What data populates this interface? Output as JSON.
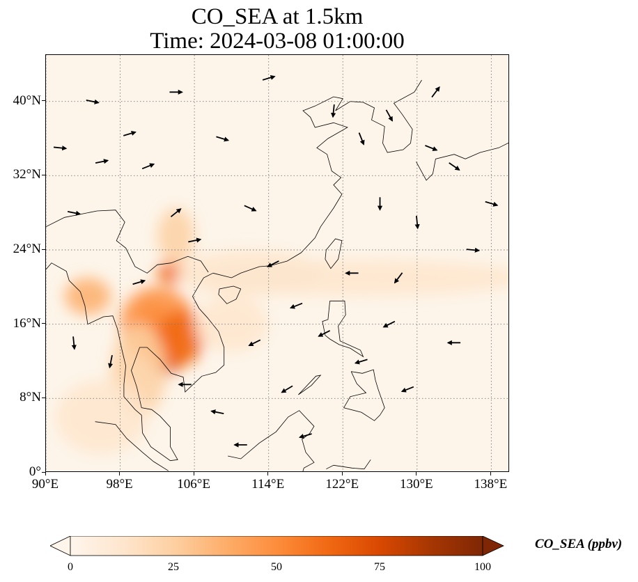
{
  "title": {
    "line1": "CO_SEA at 1.5km",
    "line2": "Time: 2024-03-08 01:00:00"
  },
  "map": {
    "projection": "PlateCarree",
    "lon_range": [
      90,
      140
    ],
    "lat_range": [
      0,
      45
    ],
    "x_ticks": [
      {
        "lon": 90,
        "label": "90°E"
      },
      {
        "lon": 98,
        "label": "98°E"
      },
      {
        "lon": 106,
        "label": "106°E"
      },
      {
        "lon": 114,
        "label": "114°E"
      },
      {
        "lon": 122,
        "label": "122°E"
      },
      {
        "lon": 130,
        "label": "130°E"
      },
      {
        "lon": 138,
        "label": "138°E"
      }
    ],
    "y_ticks": [
      {
        "lat": 0,
        "label": "0°"
      },
      {
        "lat": 8,
        "label": "8°N"
      },
      {
        "lat": 16,
        "label": "16°N"
      },
      {
        "lat": 24,
        "label": "24°N"
      },
      {
        "lat": 32,
        "label": "32°N"
      },
      {
        "lat": 40,
        "label": "40°N"
      }
    ],
    "gridlines": "dotted",
    "background_color": "#fdf5ea",
    "coastline_color": "#000000"
  },
  "concentration_field": {
    "variable": "CO_SEA",
    "units": "ppbv",
    "hotspots": [
      {
        "lon": 103.0,
        "lat": 13.5,
        "value": 75,
        "rlon": 2.0,
        "rlat": 3.0
      },
      {
        "lon": 102.0,
        "lat": 16.0,
        "value": 55,
        "rlon": 4.0,
        "rlat": 4.0
      },
      {
        "lon": 103.5,
        "lat": 21.5,
        "value": 60,
        "rlon": 1.5,
        "rlat": 1.2
      },
      {
        "lon": 101.5,
        "lat": 17.0,
        "value": 50,
        "rlon": 1.5,
        "rlat": 1.2
      },
      {
        "lon": 104.5,
        "lat": 14.5,
        "value": 58,
        "rlon": 2.5,
        "rlat": 3.0
      },
      {
        "lon": 94.5,
        "lat": 19.0,
        "value": 35,
        "rlon": 2.5,
        "rlat": 2.0
      },
      {
        "lon": 100.0,
        "lat": 11.0,
        "value": 30,
        "rlon": 3.0,
        "rlat": 5.0
      },
      {
        "lon": 96.0,
        "lat": 6.0,
        "value": 18,
        "rlon": 5.0,
        "rlat": 4.0
      },
      {
        "lon": 112.0,
        "lat": 21.5,
        "value": 14,
        "rlon": 8.0,
        "rlat": 2.5
      },
      {
        "lon": 124.0,
        "lat": 21.0,
        "value": 10,
        "rlon": 18.0,
        "rlat": 2.0
      },
      {
        "lon": 104.0,
        "lat": 25.5,
        "value": 20,
        "rlon": 2.0,
        "rlat": 3.0
      },
      {
        "lon": 110.0,
        "lat": 16.0,
        "value": 12,
        "rlon": 4.0,
        "rlat": 3.0
      }
    ]
  },
  "wind_vectors": [
    {
      "lon": 91.5,
      "lat": 35.0,
      "u": 1.0,
      "v": -0.1
    },
    {
      "lon": 93.0,
      "lat": 28.0,
      "u": 1.0,
      "v": -0.2
    },
    {
      "lon": 96.0,
      "lat": 33.5,
      "u": 1.0,
      "v": 0.2
    },
    {
      "lon": 99.0,
      "lat": 36.5,
      "u": 1.0,
      "v": 0.3
    },
    {
      "lon": 101.0,
      "lat": 33.0,
      "u": 1.0,
      "v": 0.4
    },
    {
      "lon": 104.0,
      "lat": 28.0,
      "u": 1.0,
      "v": 0.8
    },
    {
      "lon": 106.0,
      "lat": 25.0,
      "u": 1.0,
      "v": 0.2
    },
    {
      "lon": 100.0,
      "lat": 20.5,
      "u": 1.0,
      "v": 0.3
    },
    {
      "lon": 109.0,
      "lat": 36.0,
      "u": 1.0,
      "v": -0.3
    },
    {
      "lon": 112.0,
      "lat": 28.5,
      "u": 0.9,
      "v": -0.4
    },
    {
      "lon": 114.5,
      "lat": 22.5,
      "u": -1.0,
      "v": -0.5
    },
    {
      "lon": 117.0,
      "lat": 18.0,
      "u": -1.0,
      "v": -0.4
    },
    {
      "lon": 112.5,
      "lat": 14.0,
      "u": -1.0,
      "v": -0.5
    },
    {
      "lon": 116.0,
      "lat": 9.0,
      "u": -1.0,
      "v": -0.6
    },
    {
      "lon": 121.0,
      "lat": 39.0,
      "u": -0.1,
      "v": -1.0
    },
    {
      "lon": 124.0,
      "lat": 36.0,
      "u": 0.4,
      "v": -1.0
    },
    {
      "lon": 127.0,
      "lat": 38.5,
      "u": 0.5,
      "v": -0.9
    },
    {
      "lon": 131.5,
      "lat": 35.0,
      "u": 1.0,
      "v": -0.4
    },
    {
      "lon": 134.0,
      "lat": 33.0,
      "u": 1.0,
      "v": -0.7
    },
    {
      "lon": 138.0,
      "lat": 29.0,
      "u": 1.0,
      "v": -0.3
    },
    {
      "lon": 126.0,
      "lat": 29.0,
      "u": 0.0,
      "v": -1.0
    },
    {
      "lon": 130.0,
      "lat": 27.0,
      "u": 0.1,
      "v": -1.0
    },
    {
      "lon": 123.0,
      "lat": 21.5,
      "u": -1.0,
      "v": 0.0
    },
    {
      "lon": 128.0,
      "lat": 21.0,
      "u": -0.6,
      "v": -0.8
    },
    {
      "lon": 127.0,
      "lat": 16.0,
      "u": -1.0,
      "v": -0.5
    },
    {
      "lon": 120.0,
      "lat": 15.0,
      "u": -1.0,
      "v": -0.5
    },
    {
      "lon": 124.0,
      "lat": 12.0,
      "u": -1.0,
      "v": -0.3
    },
    {
      "lon": 129.0,
      "lat": 9.0,
      "u": -1.0,
      "v": -0.4
    },
    {
      "lon": 134.0,
      "lat": 14.0,
      "u": -1.0,
      "v": 0.0
    },
    {
      "lon": 136.0,
      "lat": 24.0,
      "u": 1.0,
      "v": -0.1
    },
    {
      "lon": 97.0,
      "lat": 12.0,
      "u": -0.2,
      "v": -1.0
    },
    {
      "lon": 93.0,
      "lat": 14.0,
      "u": 0.1,
      "v": -1.0
    },
    {
      "lon": 105.0,
      "lat": 9.5,
      "u": -1.0,
      "v": 0.0
    },
    {
      "lon": 108.5,
      "lat": 6.5,
      "u": -1.0,
      "v": 0.2
    },
    {
      "lon": 118.0,
      "lat": 4.0,
      "u": -1.0,
      "v": -0.3
    },
    {
      "lon": 111.0,
      "lat": 3.0,
      "u": -1.0,
      "v": 0.0
    },
    {
      "lon": 95.0,
      "lat": 40.0,
      "u": 1.0,
      "v": -0.2
    },
    {
      "lon": 104.0,
      "lat": 41.0,
      "u": 1.0,
      "v": 0.0
    },
    {
      "lon": 114.0,
      "lat": 42.5,
      "u": 1.0,
      "v": 0.3
    },
    {
      "lon": 132.0,
      "lat": 41.0,
      "u": 0.6,
      "v": 0.8
    }
  ],
  "colorbar": {
    "label": "CO_SEA (ppbv)",
    "min": 0,
    "max": 100,
    "extend": "both",
    "ticks": [
      {
        "value": 0,
        "label": "0"
      },
      {
        "value": 25,
        "label": "25"
      },
      {
        "value": 50,
        "label": "50"
      },
      {
        "value": 75,
        "label": "75"
      },
      {
        "value": 100,
        "label": "100"
      }
    ],
    "colormap": [
      "#fff5eb",
      "#fee6ce",
      "#fdd0a2",
      "#fdae6b",
      "#fd8d3c",
      "#f16913",
      "#d94801",
      "#a63603",
      "#7f2704"
    ]
  }
}
